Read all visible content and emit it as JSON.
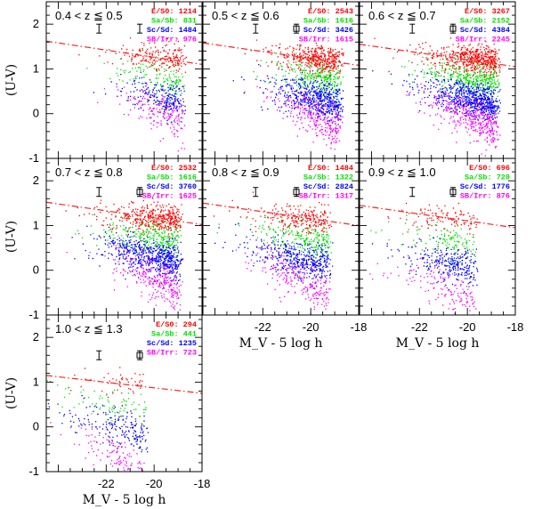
{
  "chart_data": {
    "type": "scatter",
    "grid": false,
    "xlabel": "M_V - 5 log h",
    "ylabel": "(U-V)",
    "xlim": [
      -24.5,
      -18
    ],
    "ylim": [
      -1,
      2.5
    ],
    "xticks": [
      "-22",
      "-20",
      "-18"
    ],
    "yticks": [
      "-1",
      "0",
      "1",
      "2"
    ],
    "series_styles": [
      {
        "key": "es0",
        "color": "#ff0000"
      },
      {
        "key": "sasb",
        "color": "#00e000"
      },
      {
        "key": "scsd",
        "color": "#0000ff"
      },
      {
        "key": "sbirr",
        "color": "#ff00ff"
      }
    ],
    "panels": [
      {
        "label": "0.4 < z ≦ 0.5",
        "legend": [
          "E/S0: 1214",
          "Sa/Sb: 831",
          "Sc/Sd: 1484",
          "SB/Irr: 976"
        ],
        "counts": [
          1214,
          831,
          1484,
          976
        ],
        "mag_limit": -18.6,
        "means": [
          1.3,
          0.85,
          0.4,
          0.15
        ],
        "red_line": {
          "x": [
            -24.5,
            -18
          ],
          "y": [
            1.62,
            1.1
          ]
        },
        "error_bars": [
          {
            "x": -22.3,
            "y": 1.9,
            "type": "simple"
          },
          {
            "x": -20.6,
            "y": 1.9,
            "type": "simple"
          }
        ]
      },
      {
        "label": "0.5 < z ≦ 0.6",
        "legend": [
          "E/S0: 2543",
          "Sa/Sb: 1616",
          "Sc/Sd: 3426",
          "SB/Irr: 1615"
        ],
        "counts": [
          2543,
          1616,
          3426,
          1615
        ],
        "mag_limit": -18.6,
        "means": [
          1.25,
          0.85,
          0.4,
          0.1
        ],
        "red_line": {
          "x": [
            -24.5,
            -18
          ],
          "y": [
            1.58,
            1.08
          ]
        },
        "error_bars": [
          {
            "x": -22.3,
            "y": 1.9,
            "type": "simple"
          },
          {
            "x": -20.6,
            "y": 1.9,
            "type": "boxed"
          }
        ]
      },
      {
        "label": "0.6 < z ≦ 0.7",
        "legend": [
          "E/S0: 3267",
          "Sa/Sb: 2152",
          "Sc/Sd: 4384",
          "SB/Irr: 2245"
        ],
        "counts": [
          3267,
          2152,
          4384,
          2245
        ],
        "mag_limit": -18.6,
        "means": [
          1.25,
          0.85,
          0.4,
          0.1
        ],
        "red_line": {
          "x": [
            -24.5,
            -18
          ],
          "y": [
            1.55,
            1.05
          ]
        },
        "error_bars": [
          {
            "x": -22.3,
            "y": 1.9,
            "type": "simple"
          },
          {
            "x": -20.6,
            "y": 1.9,
            "type": "boxed"
          }
        ]
      },
      {
        "label": "0.7 < z ≦ 0.8",
        "legend": [
          "E/S0: 2532",
          "Sa/Sb: 1616",
          "Sc/Sd: 3760",
          "SB/Irr: 1625"
        ],
        "counts": [
          2532,
          1616,
          3760,
          1625
        ],
        "mag_limit": -18.8,
        "means": [
          1.2,
          0.8,
          0.4,
          0.05
        ],
        "red_line": {
          "x": [
            -24.5,
            -18
          ],
          "y": [
            1.52,
            1.02
          ]
        },
        "error_bars": [
          {
            "x": -22.3,
            "y": 1.75,
            "type": "simple"
          },
          {
            "x": -20.6,
            "y": 1.75,
            "type": "boxed"
          }
        ]
      },
      {
        "label": "0.8 < z ≦ 0.9",
        "legend": [
          "E/S0: 1484",
          "Sa/Sb: 1322",
          "Sc/Sd: 2824",
          "SB/Irr: 1317"
        ],
        "counts": [
          1484,
          1322,
          2824,
          1317
        ],
        "mag_limit": -19.1,
        "means": [
          1.2,
          0.8,
          0.35,
          0.0
        ],
        "red_line": {
          "x": [
            -24.5,
            -18
          ],
          "y": [
            1.5,
            1.0
          ]
        },
        "error_bars": [
          {
            "x": -22.3,
            "y": 1.75,
            "type": "simple"
          },
          {
            "x": -20.6,
            "y": 1.75,
            "type": "boxed"
          }
        ]
      },
      {
        "label": "0.9 < z ≦ 1.0",
        "legend": [
          "E/S0: 696",
          "Sa/Sb: 720",
          "Sc/Sd: 1776",
          "SB/Irr: 876"
        ],
        "counts": [
          696,
          720,
          1776,
          876
        ],
        "mag_limit": -19.5,
        "means": [
          1.2,
          0.75,
          0.3,
          -0.1
        ],
        "red_line": {
          "x": [
            -24.5,
            -18
          ],
          "y": [
            1.45,
            0.95
          ]
        },
        "error_bars": [
          {
            "x": -22.3,
            "y": 1.75,
            "type": "simple"
          },
          {
            "x": -20.6,
            "y": 1.75,
            "type": "boxed"
          }
        ]
      },
      {
        "label": "1.0 < z ≦ 1.3",
        "legend": [
          "E/S0: 294",
          "Sa/Sb: 441",
          "Sc/Sd: 1235",
          "SB/Irr: 723"
        ],
        "counts": [
          294,
          441,
          1235,
          723
        ],
        "mag_limit": -20.2,
        "means": [
          1.05,
          0.6,
          0.15,
          -0.35
        ],
        "red_line": {
          "x": [
            -24.5,
            -18
          ],
          "y": [
            1.15,
            0.75
          ]
        },
        "error_bars": [
          {
            "x": -22.3,
            "y": 1.6,
            "type": "simple"
          },
          {
            "x": -20.6,
            "y": 1.6,
            "type": "boxed"
          }
        ]
      }
    ]
  }
}
